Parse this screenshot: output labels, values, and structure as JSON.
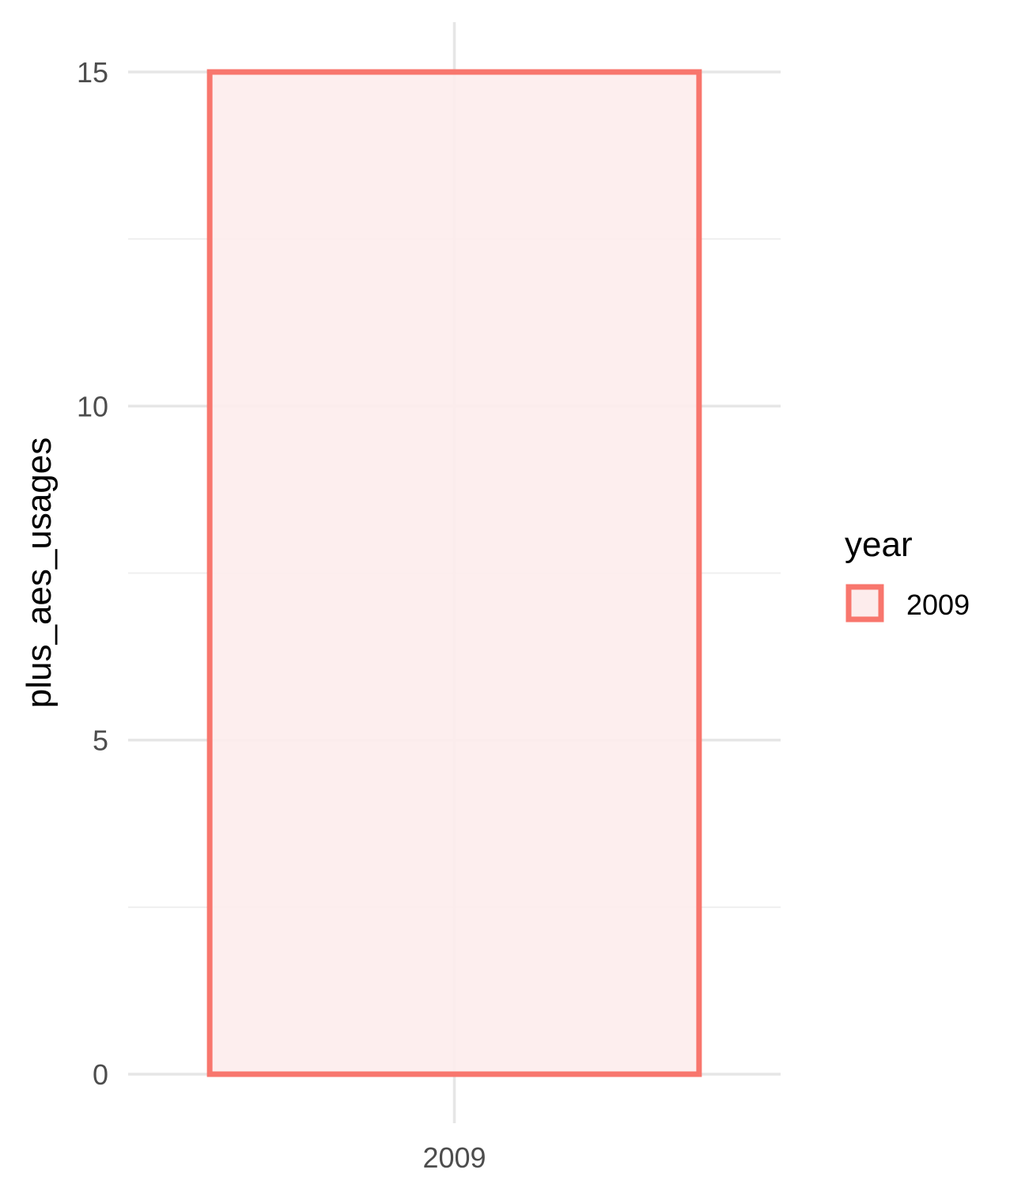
{
  "chart_data": {
    "type": "bar",
    "categories": [
      "2009"
    ],
    "values": [
      15
    ],
    "title": "",
    "xlabel": "",
    "ylabel": "plus_aes_usages",
    "ylim": [
      0,
      15
    ],
    "y_ticks": [
      0,
      5,
      10,
      15
    ],
    "grid": true,
    "legend": {
      "title": "year",
      "position": "right",
      "entries": [
        {
          "label": "2009",
          "color": "#F8766D"
        }
      ]
    },
    "colors": {
      "bar_outline": "#F8766D",
      "bar_fill": "#FDECEC",
      "grid_major": "#e6e6e6",
      "grid_minor": "#efefef"
    }
  }
}
